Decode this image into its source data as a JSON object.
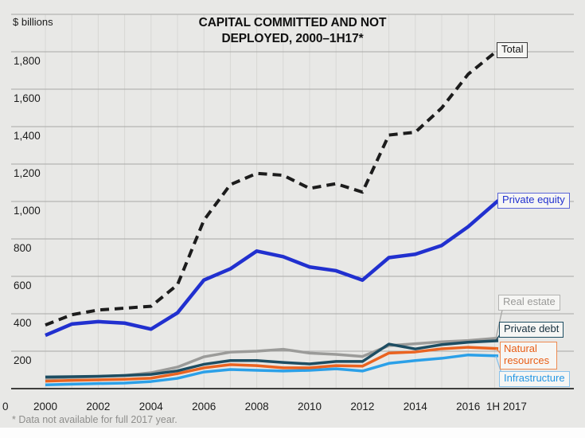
{
  "header": {
    "unit_label": "$ billions",
    "title_line1": "CAPITAL COMMITTED AND NOT",
    "title_line2": "DEPLOYED, 2000–1H17*"
  },
  "footnote": "* Data not available for full 2017 year.",
  "chart_data": {
    "type": "line",
    "title": "CAPITAL COMMITTED AND NOT DEPLOYED, 2000–1H17*",
    "unit": "$ billions",
    "x_categories": [
      "2000",
      "2001",
      "2002",
      "2003",
      "2004",
      "2005",
      "2006",
      "2007",
      "2008",
      "2009",
      "2010",
      "2011",
      "2012",
      "2013",
      "2014",
      "2015",
      "2016",
      "1H 2017"
    ],
    "x_tick_labels": [
      "2000",
      "2002",
      "2004",
      "2006",
      "2008",
      "2010",
      "2012",
      "2014",
      "2016",
      "1H 2017"
    ],
    "x_tick_positions": [
      0,
      2,
      4,
      6,
      8,
      10,
      12,
      14,
      16,
      17.45
    ],
    "y_tick_values": [
      0,
      200,
      400,
      600,
      800,
      1000,
      1200,
      1400,
      1600,
      1800
    ],
    "y_tick_labels": [
      "0",
      "200",
      "400",
      "600",
      "800",
      "1,000",
      "1,200",
      "1,400",
      "1,600",
      "1,800"
    ],
    "ylim": [
      0,
      2000
    ],
    "grid": {
      "horizontal": true,
      "vertical": true
    },
    "legend_position": "right-annotations",
    "series": [
      {
        "name": "Total",
        "color": "#1c1c1c",
        "style": "dashed",
        "values": [
          340,
          395,
          420,
          430,
          440,
          555,
          900,
          1090,
          1150,
          1140,
          1070,
          1095,
          1050,
          1355,
          1370,
          1500,
          1680,
          1810
        ]
      },
      {
        "name": "Private equity",
        "color": "#2130cf",
        "style": "solid",
        "values": [
          285,
          345,
          358,
          350,
          318,
          405,
          580,
          640,
          735,
          705,
          650,
          630,
          580,
          700,
          718,
          765,
          865,
          1005
        ]
      },
      {
        "name": "Real estate",
        "color": "#9b9b99",
        "style": "solid",
        "values": [
          55,
          60,
          65,
          70,
          85,
          115,
          170,
          195,
          200,
          210,
          190,
          183,
          172,
          230,
          240,
          250,
          257,
          270
        ]
      },
      {
        "name": "Private debt",
        "color": "#1d4d62",
        "style": "solid",
        "values": [
          62,
          64,
          66,
          70,
          76,
          95,
          130,
          150,
          150,
          140,
          132,
          145,
          145,
          238,
          212,
          235,
          248,
          256
        ]
      },
      {
        "name": "Natural resources",
        "color": "#ea6320",
        "style": "solid",
        "values": [
          40,
          44,
          47,
          50,
          56,
          80,
          111,
          128,
          123,
          111,
          111,
          123,
          120,
          190,
          196,
          213,
          221,
          214
        ]
      },
      {
        "name": "Infrastructure",
        "color": "#2ba0e8",
        "style": "solid",
        "values": [
          20,
          24,
          27,
          30,
          38,
          55,
          89,
          102,
          98,
          94,
          98,
          106,
          94,
          135,
          150,
          162,
          180,
          175
        ]
      }
    ]
  }
}
